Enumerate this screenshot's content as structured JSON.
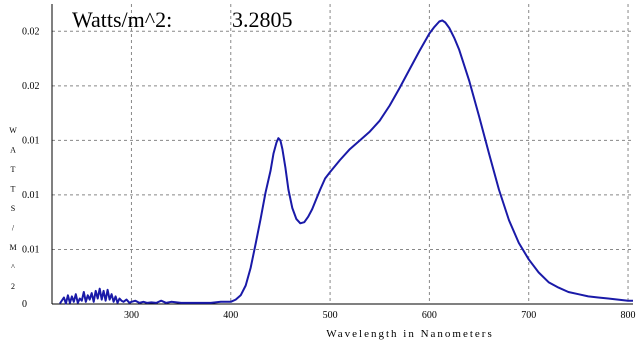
{
  "readout": {
    "label": "Watts/m^2:",
    "value": "3.2805"
  },
  "chart_data": {
    "type": "line",
    "title": "",
    "xlabel": "Wavelength in Nanometers",
    "ylabel_letters": [
      "W",
      "A",
      "T",
      "T",
      "S",
      "/",
      "M",
      "^",
      "2"
    ],
    "xlim": [
      220,
      805
    ],
    "ylim": [
      0,
      0.0275
    ],
    "grid": true,
    "x_ticks": [
      300,
      400,
      500,
      600,
      700,
      800
    ],
    "x_tick_labels": [
      "300",
      "400",
      "500",
      "600",
      "700",
      "800"
    ],
    "y_ticks": [
      0,
      0.005,
      0.01,
      0.015,
      0.02,
      0.025
    ],
    "y_tick_labels": [
      "0",
      "0.01",
      "0.01",
      "0.01",
      "0.02",
      "0.02"
    ],
    "colors": {
      "series": "#1a1aa8",
      "grid": "#888888"
    },
    "series": [
      {
        "name": "",
        "x": [
          228,
          232,
          234,
          236,
          238,
          240,
          242,
          244,
          246,
          248,
          250,
          252,
          254,
          256,
          258,
          260,
          262,
          264,
          266,
          268,
          270,
          272,
          274,
          276,
          278,
          280,
          282,
          284,
          286,
          288,
          290,
          292,
          295,
          298,
          300,
          304,
          308,
          312,
          316,
          320,
          325,
          330,
          335,
          340,
          350,
          360,
          370,
          380,
          390,
          400,
          405,
          410,
          415,
          420,
          425,
          430,
          435,
          440,
          443,
          446,
          448,
          450,
          452,
          455,
          458,
          462,
          466,
          470,
          474,
          478,
          482,
          486,
          490,
          495,
          500,
          510,
          520,
          530,
          540,
          550,
          560,
          570,
          580,
          590,
          600,
          605,
          610,
          613,
          616,
          620,
          625,
          630,
          640,
          650,
          660,
          670,
          680,
          690,
          700,
          710,
          720,
          730,
          740,
          750,
          760,
          770,
          780,
          790,
          800,
          805
        ],
        "y": [
          5e-05,
          0.0006,
          5e-05,
          0.0008,
          0.0001,
          0.0007,
          0.0002,
          0.0009,
          0.0001,
          0.0005,
          0.0003,
          0.0011,
          0.0002,
          0.0008,
          0.0004,
          0.001,
          0.0002,
          0.0012,
          0.0005,
          0.0014,
          0.0004,
          0.0012,
          0.0003,
          0.0013,
          0.0004,
          0.0009,
          0.0002,
          0.0007,
          0.0001,
          0.0005,
          0.0003,
          0.0002,
          0.0004,
          0.0001,
          0.0002,
          0.0003,
          0.0001,
          0.0002,
          0.0001,
          0.00015,
          0.0001,
          0.0003,
          0.0001,
          0.0002,
          0.0001,
          0.0001,
          0.0001,
          0.0001,
          0.0002,
          0.0002,
          0.0004,
          0.0008,
          0.0017,
          0.0033,
          0.0055,
          0.0078,
          0.0102,
          0.0122,
          0.0138,
          0.0148,
          0.0152,
          0.015,
          0.0142,
          0.0125,
          0.0105,
          0.0088,
          0.0078,
          0.0074,
          0.0075,
          0.008,
          0.0087,
          0.0096,
          0.0105,
          0.0115,
          0.0121,
          0.0132,
          0.0142,
          0.015,
          0.0158,
          0.0168,
          0.0182,
          0.0198,
          0.0215,
          0.0232,
          0.0248,
          0.0254,
          0.0259,
          0.026,
          0.0258,
          0.0253,
          0.0244,
          0.0233,
          0.0205,
          0.0172,
          0.0138,
          0.0105,
          0.0077,
          0.0056,
          0.0041,
          0.0029,
          0.002,
          0.0015,
          0.0011,
          0.0009,
          0.0007,
          0.0006,
          0.0005,
          0.0004,
          0.0003,
          0.0003
        ]
      }
    ]
  }
}
